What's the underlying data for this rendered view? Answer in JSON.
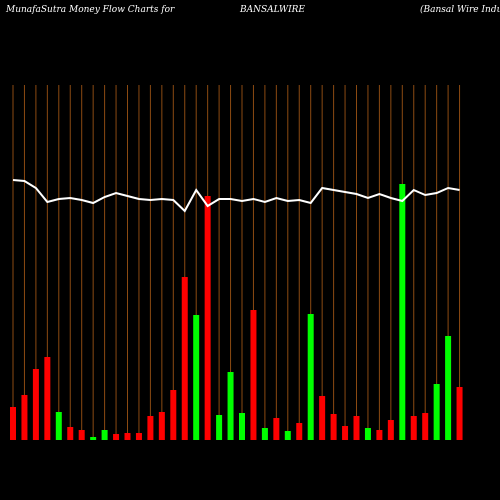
{
  "chart_data": {
    "type": "bar",
    "title": "MunafaSutra  Money Flow  Charts for",
    "subtitle": "BANSALWIRE",
    "company": "(Bansal Wire  Industr",
    "ylim": [
      0,
      400
    ],
    "values": [
      33,
      45,
      71,
      83,
      28,
      13,
      10,
      3,
      10,
      6,
      7,
      7,
      24,
      28,
      50,
      163,
      125,
      244,
      25,
      68,
      27,
      130,
      12,
      22,
      9,
      17,
      126,
      44,
      26,
      14,
      24,
      12,
      10,
      20,
      256,
      24,
      27,
      56,
      104,
      53
    ],
    "colors": [
      "#ff0000",
      "#ff0000",
      "#ff0000",
      "#ff0000",
      "#00ff00",
      "#ff0000",
      "#ff0000",
      "#00ff00",
      "#00ff00",
      "#ff0000",
      "#ff0000",
      "#ff0000",
      "#ff0000",
      "#ff0000",
      "#ff0000",
      "#ff0000",
      "#00ff00",
      "#ff0000",
      "#00ff00",
      "#00ff00",
      "#00ff00",
      "#ff0000",
      "#00ff00",
      "#ff0000",
      "#00ff00",
      "#ff0000",
      "#00ff00",
      "#ff0000",
      "#ff0000",
      "#ff0000",
      "#ff0000",
      "#00ff00",
      "#ff0000",
      "#ff0000",
      "#00ff00",
      "#ff0000",
      "#ff0000",
      "#00ff00",
      "#00ff00",
      "#ff0000"
    ],
    "line": {
      "color": "#ffffff",
      "values": [
        260,
        259,
        252,
        238,
        241,
        242,
        240,
        237,
        243,
        247,
        244,
        241,
        240,
        241,
        240,
        229,
        250,
        234,
        241,
        241,
        239,
        241,
        238,
        242,
        239,
        240,
        237,
        252,
        250,
        248,
        246,
        242,
        246,
        242,
        239,
        250,
        245,
        247,
        252,
        250
      ]
    }
  }
}
